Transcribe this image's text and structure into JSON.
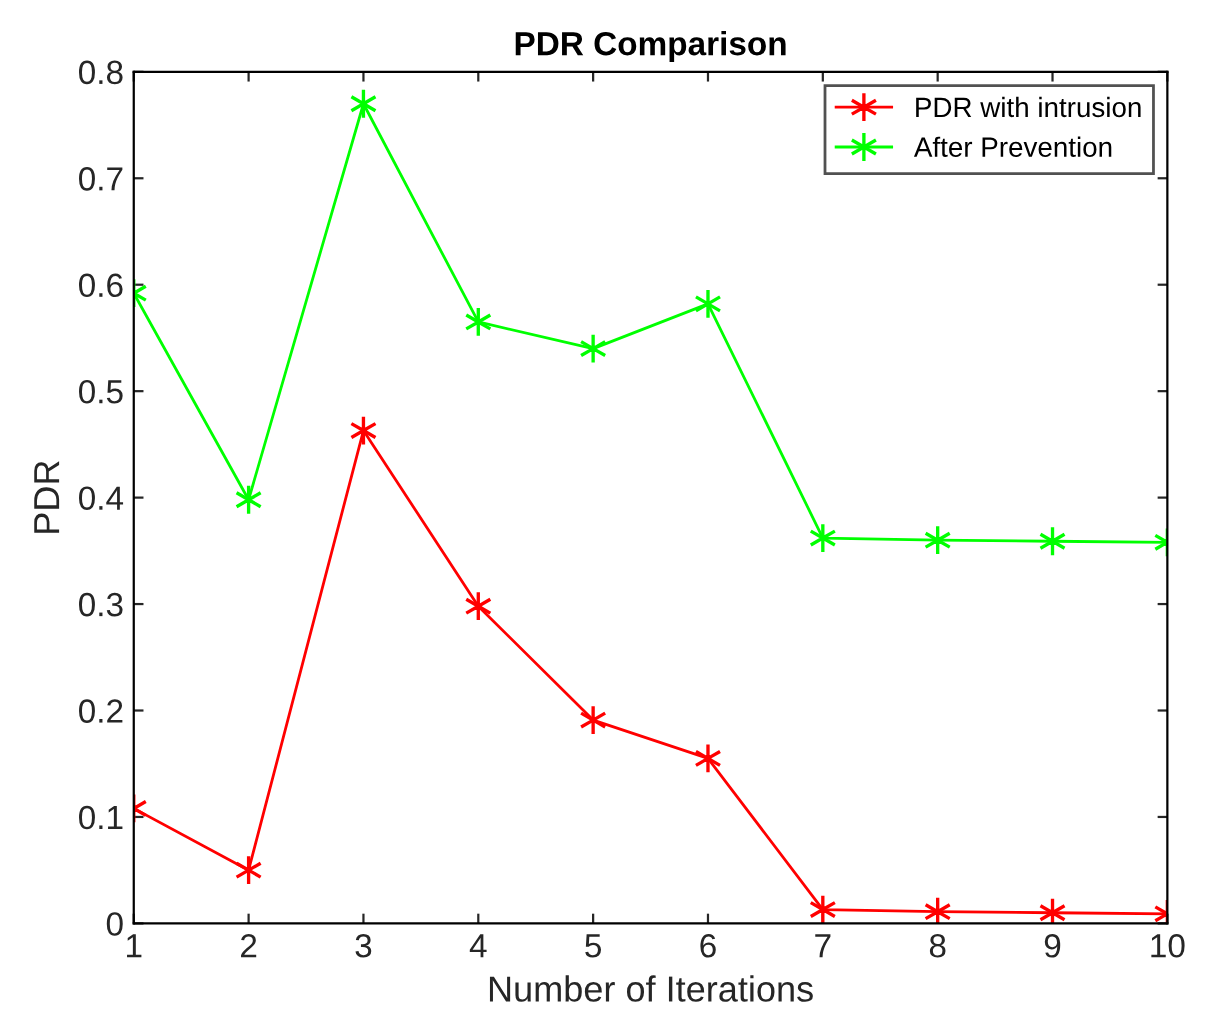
{
  "chart_data": {
    "type": "line",
    "title": "PDR Comparison",
    "xlabel": "Number of Iterations",
    "ylabel": "PDR",
    "x": [
      1,
      2,
      3,
      4,
      5,
      6,
      7,
      8,
      9,
      10
    ],
    "series": [
      {
        "name": "PDR with intrusion",
        "color": "#ff0000",
        "values": [
          0.108,
          0.05,
          0.463,
          0.298,
          0.191,
          0.155,
          0.013,
          0.011,
          0.01,
          0.009
        ]
      },
      {
        "name": "After Prevention",
        "color": "#00ff00",
        "values": [
          0.592,
          0.398,
          0.77,
          0.565,
          0.54,
          0.582,
          0.362,
          0.36,
          0.359,
          0.358
        ]
      }
    ],
    "xlim": [
      1,
      10
    ],
    "xticks": [
      1,
      2,
      3,
      4,
      5,
      6,
      7,
      8,
      9,
      10
    ],
    "ylim": [
      0,
      0.8
    ],
    "yticks": [
      0,
      0.1,
      0.2,
      0.3,
      0.4,
      0.5,
      0.6,
      0.7,
      0.8
    ],
    "grid": false,
    "legend": "top right",
    "marker": "cross",
    "line_style": "solid"
  }
}
